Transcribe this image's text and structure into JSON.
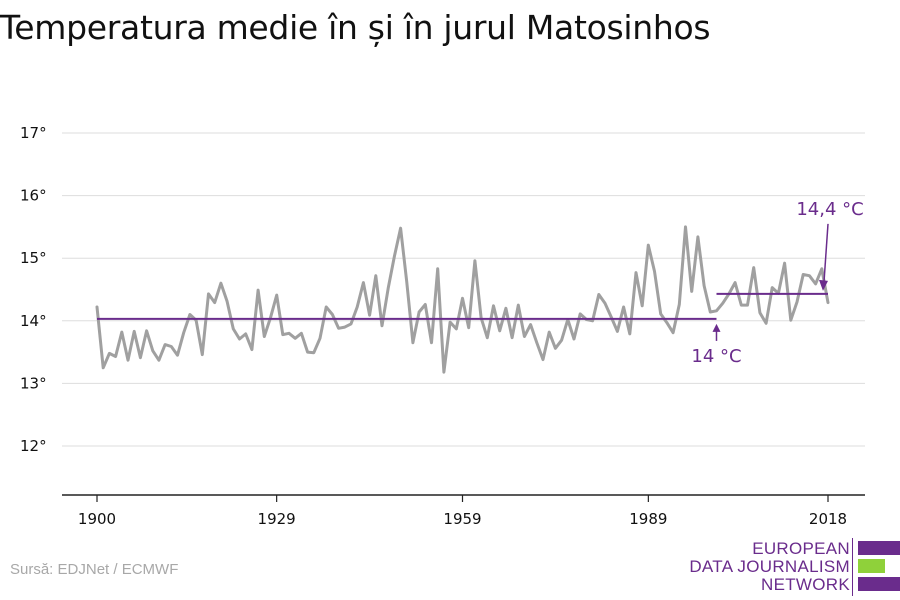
{
  "title": "Temperatura medie în și în jurul Matosinhos",
  "source": "Sursă: EDJNet / ECMWF",
  "logo": {
    "lines": [
      "EUROPEAN",
      "DATA JOURNALISM",
      "NETWORK"
    ]
  },
  "colors": {
    "series": "#a0a0a0",
    "mean": "#6a2c8c",
    "accent": "#8fd13a",
    "grid": "#dddddd",
    "text": "#111111"
  },
  "chart_data": {
    "type": "line",
    "title": "Temperatura medie în și în jurul Matosinhos",
    "xlabel": "",
    "ylabel": "",
    "xlim": [
      1900,
      2018
    ],
    "ylim": [
      11.3,
      17.3
    ],
    "x_ticks": [
      1900,
      1929,
      1959,
      1989,
      2018
    ],
    "y_ticks": [
      12,
      13,
      14,
      15,
      16,
      17
    ],
    "y_tick_labels": [
      "12°",
      "13°",
      "14°",
      "15°",
      "16°",
      "17°"
    ],
    "grid": true,
    "series": [
      {
        "x": [
          1900,
          1901,
          1902,
          1903,
          1904,
          1905,
          1906,
          1907,
          1908,
          1909,
          1910,
          1911,
          1912,
          1913,
          1914,
          1915,
          1916,
          1917,
          1918,
          1919,
          1920,
          1921,
          1922,
          1923,
          1924,
          1925,
          1926,
          1927,
          1928,
          1929,
          1930,
          1931,
          1932,
          1933,
          1934,
          1935,
          1936,
          1937,
          1938,
          1939,
          1940,
          1941,
          1942,
          1943,
          1944,
          1945,
          1946,
          1947,
          1948,
          1949,
          1950,
          1951,
          1952,
          1953,
          1954,
          1955,
          1956,
          1957,
          1958,
          1959,
          1960,
          1961,
          1962,
          1963,
          1964,
          1965,
          1966,
          1967,
          1968,
          1969,
          1970,
          1971,
          1972,
          1973,
          1974,
          1975,
          1976,
          1977,
          1978,
          1979,
          1980,
          1981,
          1982,
          1983,
          1984,
          1985,
          1986,
          1987,
          1988,
          1989,
          1990,
          1991,
          1992,
          1993,
          1994,
          1995,
          1996,
          1997,
          1998,
          1999,
          2000,
          2001,
          2002,
          2003,
          2004,
          2005,
          2006,
          2007,
          2008,
          2009,
          2010,
          2011,
          2012,
          2013,
          2014,
          2015,
          2016,
          2017,
          2018
        ],
        "values": [
          14.22,
          13.25,
          13.48,
          13.43,
          13.82,
          13.37,
          13.83,
          13.41,
          13.84,
          13.52,
          13.37,
          13.62,
          13.59,
          13.45,
          13.81,
          14.1,
          14.01,
          13.46,
          14.43,
          14.29,
          14.6,
          14.31,
          13.87,
          13.71,
          13.79,
          13.54,
          14.49,
          13.75,
          14.05,
          14.41,
          13.78,
          13.8,
          13.72,
          13.8,
          13.5,
          13.49,
          13.72,
          14.22,
          14.1,
          13.88,
          13.9,
          13.95,
          14.22,
          14.61,
          14.09,
          14.72,
          13.92,
          14.52,
          15.03,
          15.48,
          14.63,
          13.65,
          14.14,
          14.26,
          13.65,
          14.83,
          13.18,
          13.98,
          13.87,
          14.36,
          13.89,
          14.96,
          14.05,
          13.73,
          14.24,
          13.84,
          14.2,
          13.73,
          14.25,
          13.75,
          13.94,
          13.65,
          13.38,
          13.82,
          13.56,
          13.69,
          14.02,
          13.71,
          14.11,
          14.02,
          14.0,
          14.42,
          14.28,
          14.06,
          13.83,
          14.22,
          13.79,
          14.77,
          14.24,
          15.21,
          14.79,
          14.11,
          13.97,
          13.81,
          14.26,
          15.5,
          14.47,
          15.34,
          14.56,
          14.14,
          14.16,
          14.28,
          14.43,
          14.61,
          14.25,
          14.25,
          14.85,
          14.13,
          13.96,
          14.53,
          14.44,
          14.92,
          14.01,
          14.3,
          14.74,
          14.72,
          14.59,
          14.83,
          14.29
        ]
      }
    ],
    "mean_lines": [
      {
        "from": 1900,
        "to": 2000,
        "value": 14.03,
        "label": "14 °C"
      },
      {
        "from": 2000,
        "to": 2018,
        "value": 14.43,
        "label": "14,4 °C"
      }
    ]
  }
}
